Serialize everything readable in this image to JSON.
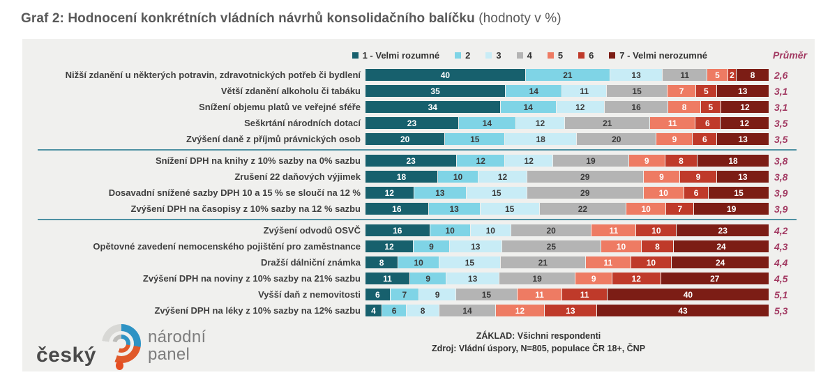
{
  "title": {
    "main": "Graf 2: Hodnocení konkrétních vládních návrhů konsolidačního balíčku",
    "note": " (hodnoty v %)"
  },
  "legend": {
    "items": [
      {
        "label": "1 - Velmi rozumné",
        "color": "#17606d"
      },
      {
        "label": "2",
        "color": "#7fd4e6"
      },
      {
        "label": "3",
        "color": "#c8ecf6"
      },
      {
        "label": "4",
        "color": "#b4b4b4"
      },
      {
        "label": "5",
        "color": "#ee7b63"
      },
      {
        "label": "6",
        "color": "#bf3a2a"
      },
      {
        "label": "7 - Velmi nerozumné",
        "color": "#7c1d15"
      }
    ],
    "average_label": "Průměr"
  },
  "chart_data": {
    "type": "bar",
    "stacked": true,
    "orientation": "horizontal",
    "units": "%",
    "scale_labels": [
      "1 - Velmi rozumné",
      "2",
      "3",
      "4",
      "5",
      "6",
      "7 - Velmi nerozumné"
    ],
    "colors": [
      "#17606d",
      "#7fd4e6",
      "#c8ecf6",
      "#b4b4b4",
      "#ee7b63",
      "#bf3a2a",
      "#7c1d15"
    ],
    "dark_text_segments": [
      1,
      2,
      3
    ],
    "separator_after": [
      4,
      8
    ],
    "separator_color": "#4e91a3",
    "average_color": "#a23a62",
    "rows": [
      {
        "label": "Nižší zdanění u některých potravin, zdravotnických potřeb či bydlení",
        "values": [
          40,
          21,
          13,
          11,
          5,
          2,
          8
        ],
        "average": "2,6"
      },
      {
        "label": "Větší zdanění alkoholu či tabáku",
        "values": [
          35,
          14,
          11,
          15,
          7,
          5,
          13
        ],
        "average": "3,1"
      },
      {
        "label": "Snížení objemu platů ve veřejné sféře",
        "values": [
          34,
          14,
          12,
          16,
          8,
          5,
          12
        ],
        "average": "3,1"
      },
      {
        "label": "Seškrtání národních dotací",
        "values": [
          23,
          14,
          12,
          21,
          11,
          6,
          12
        ],
        "average": "3,5"
      },
      {
        "label": "Zvýšení daně z příjmů právnických osob",
        "values": [
          20,
          15,
          18,
          20,
          9,
          6,
          13
        ],
        "average": "3,5"
      },
      {
        "label": "Snížení DPH na knihy z 10% sazby na 0% sazbu",
        "values": [
          23,
          12,
          12,
          19,
          9,
          8,
          18
        ],
        "average": "3,8"
      },
      {
        "label": "Zrušení 22 daňových výjimek",
        "values": [
          18,
          10,
          12,
          29,
          9,
          9,
          13
        ],
        "average": "3,8"
      },
      {
        "label": "Dosavadní snížené sazby DPH 10 a 15 % se sloučí na 12 %",
        "values": [
          12,
          13,
          15,
          29,
          10,
          6,
          15
        ],
        "average": "3,9"
      },
      {
        "label": "Zvýšení DPH na časopisy z 10% sazby na 12 % sazbu",
        "values": [
          16,
          13,
          15,
          22,
          10,
          7,
          19
        ],
        "average": "3,9"
      },
      {
        "label": "Zvýšení odvodů OSVČ",
        "values": [
          16,
          10,
          10,
          20,
          11,
          10,
          23
        ],
        "average": "4,2"
      },
      {
        "label": "Opětovné zavedení nemocenského pojištění pro zaměstnance",
        "values": [
          12,
          9,
          13,
          25,
          10,
          8,
          24
        ],
        "average": "4,3"
      },
      {
        "label": "Dražší dálniční známka",
        "values": [
          8,
          10,
          15,
          21,
          11,
          10,
          24
        ],
        "average": "4,4"
      },
      {
        "label": "Zvýšení DPH na noviny z 10% sazby na 21% sazbu",
        "values": [
          11,
          9,
          13,
          19,
          9,
          12,
          27
        ],
        "average": "4,5"
      },
      {
        "label": "Vyšší daň z nemovitosti",
        "values": [
          6,
          7,
          9,
          15,
          11,
          11,
          40
        ],
        "average": "5,1"
      },
      {
        "label": "Zvýšení DPH na léky z 10% sazby na 12% sazbu",
        "values": [
          4,
          6,
          8,
          14,
          12,
          13,
          43
        ],
        "average": "5,3"
      }
    ]
  },
  "footer": {
    "line1": "ZÁKLAD: Všichni respondenti",
    "line2": "Zdroj: Vládní úspory, N=805, populace ČR 18+, ČNP"
  },
  "logo": {
    "word_left": "český",
    "word_right_line1": "národní",
    "word_right_line2": "panel"
  }
}
